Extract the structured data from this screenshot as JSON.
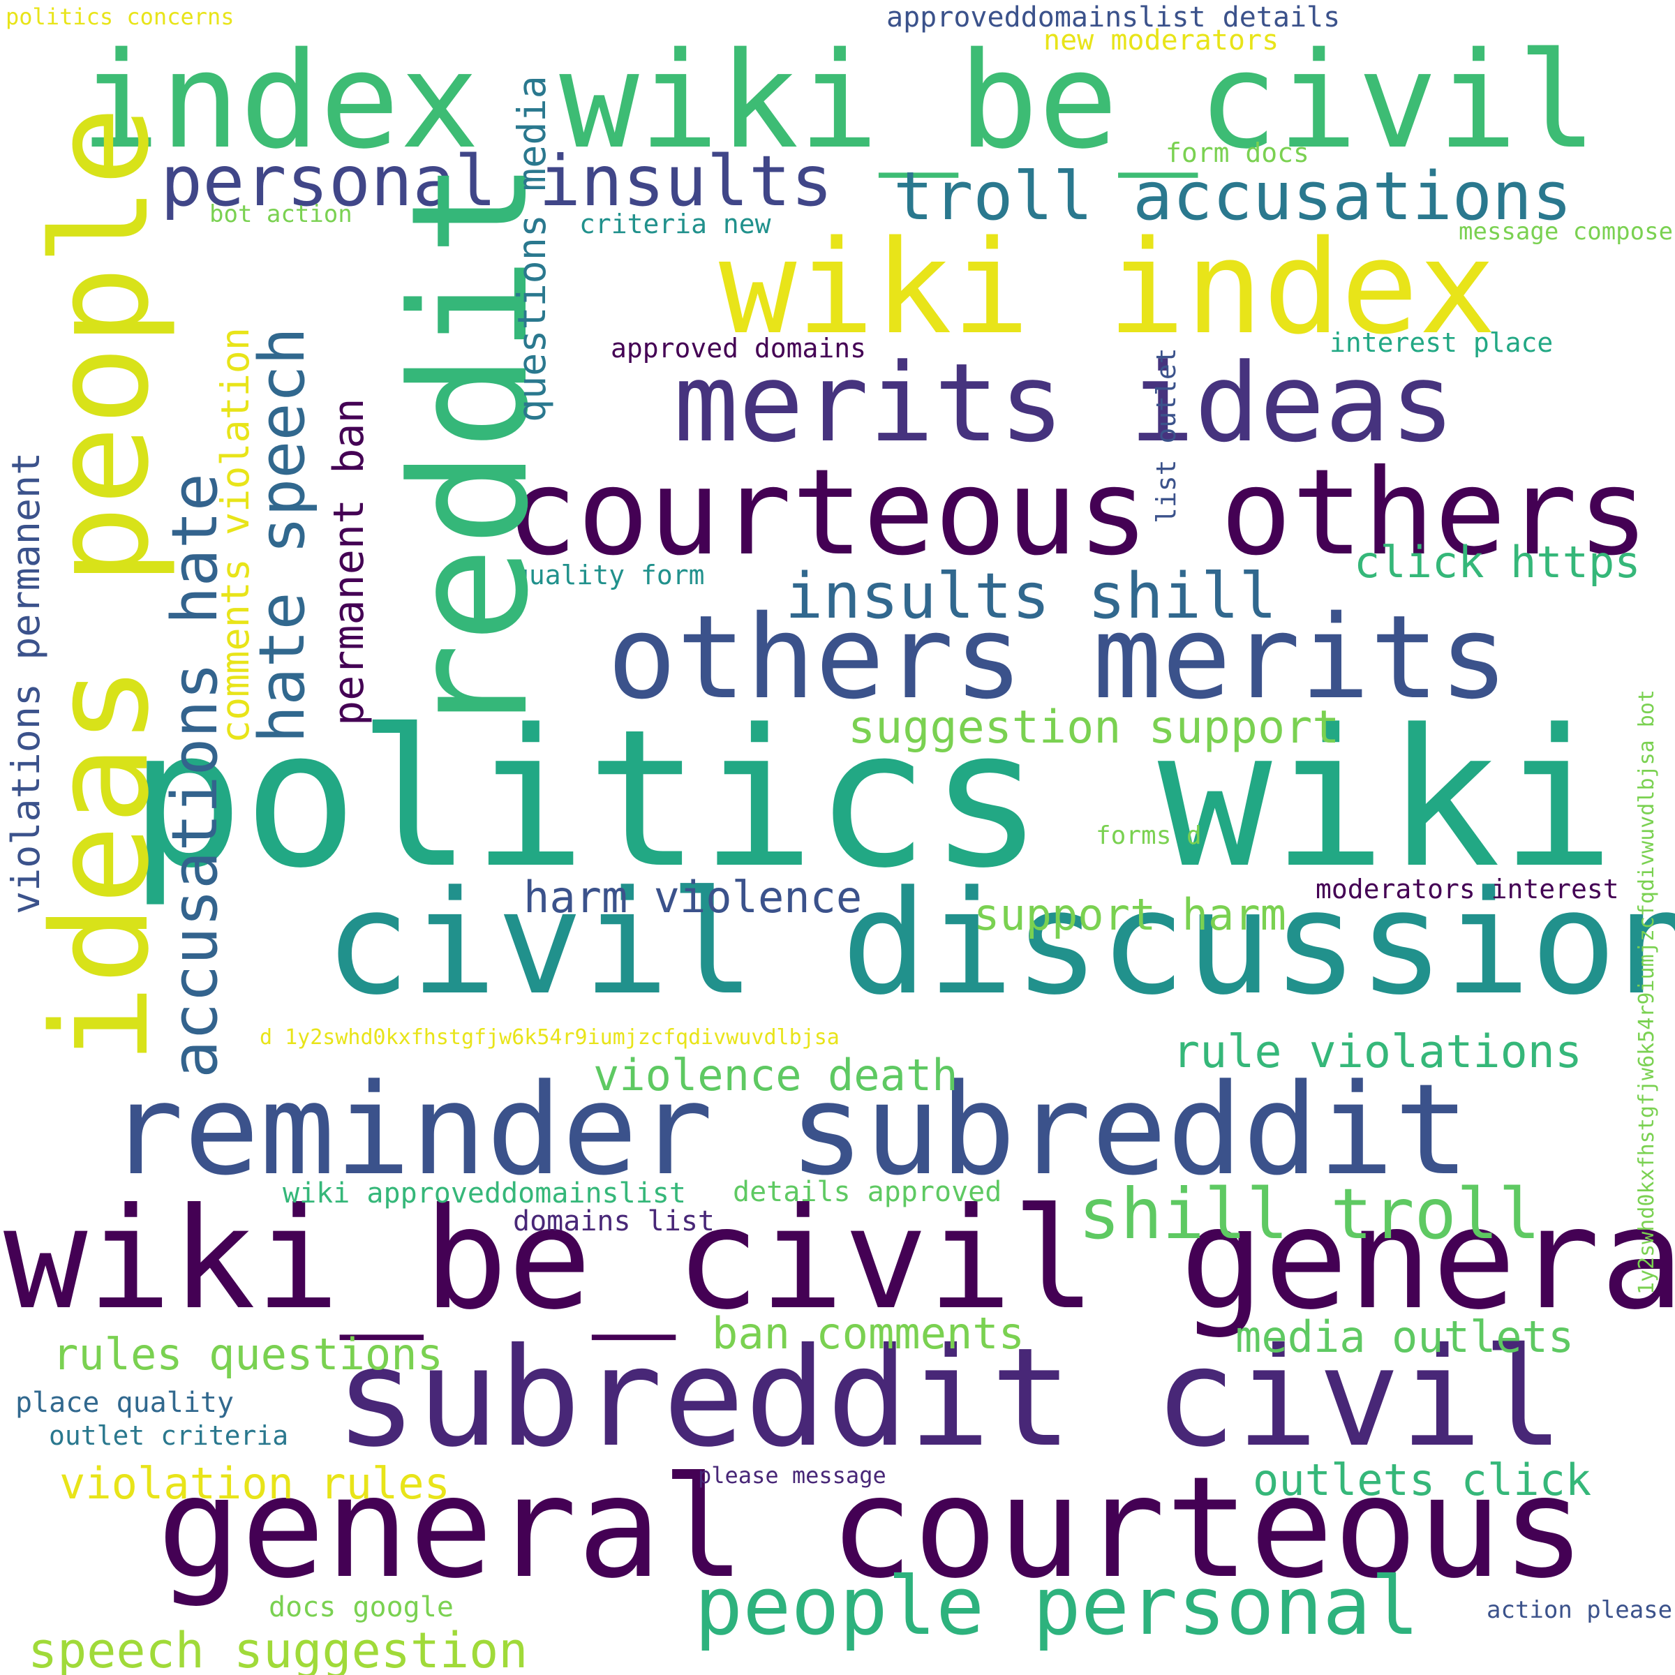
{
  "words": [
    {
      "text": "politics wiki"
    },
    {
      "text": "wiki_be_civil general"
    },
    {
      "text": "reminder subreddit"
    },
    {
      "text": "civil discussion"
    },
    {
      "text": "general courteous"
    },
    {
      "text": "subreddit civil"
    },
    {
      "text": "courteous others"
    },
    {
      "text": "others merits"
    },
    {
      "text": "index wiki_be_civil"
    },
    {
      "text": "wiki index"
    },
    {
      "text": "merits ideas"
    },
    {
      "text": "reddit"
    },
    {
      "text": "ideas people"
    },
    {
      "text": "people personal"
    },
    {
      "text": "personal insults"
    },
    {
      "text": "troll accusations"
    },
    {
      "text": "insults shill"
    },
    {
      "text": "shill troll"
    },
    {
      "text": "accusations hate"
    },
    {
      "text": "hate speech"
    },
    {
      "text": "speech suggestion"
    },
    {
      "text": "suggestion support"
    },
    {
      "text": "support harm"
    },
    {
      "text": "harm violence"
    },
    {
      "text": "violence death"
    },
    {
      "text": "rule violations"
    },
    {
      "text": "violation rules"
    },
    {
      "text": "rules questions"
    },
    {
      "text": "ban comments"
    },
    {
      "text": "media outlets"
    },
    {
      "text": "outlets click"
    },
    {
      "text": "click https"
    },
    {
      "text": "comments violation"
    },
    {
      "text": "violations permanent"
    },
    {
      "text": "permanent ban"
    },
    {
      "text": "questions media"
    },
    {
      "text": "approveddomainslist details"
    },
    {
      "text": "new moderators"
    },
    {
      "text": "form docs"
    },
    {
      "text": "message compose"
    },
    {
      "text": "criteria new"
    },
    {
      "text": "bot action"
    },
    {
      "text": "approved domains"
    },
    {
      "text": "interest place"
    },
    {
      "text": "list outlet"
    },
    {
      "text": "quality form"
    },
    {
      "text": "forms d"
    },
    {
      "text": "moderators interest"
    },
    {
      "text": "d 1y2swhd0kxfhstgfjw6k54r9iumjzcfqdivwuvdlbjsa"
    },
    {
      "text": "1y2swhd0kxfhstgfjw6k54r9iumjzcfqdivwuvdlbjsa bot"
    },
    {
      "text": "wiki approveddomainslist"
    },
    {
      "text": "details approved"
    },
    {
      "text": "domains list"
    },
    {
      "text": "place quality"
    },
    {
      "text": "outlet criteria"
    },
    {
      "text": "please message"
    },
    {
      "text": "docs google"
    },
    {
      "text": "action please"
    },
    {
      "text": "politics concerns"
    }
  ]
}
